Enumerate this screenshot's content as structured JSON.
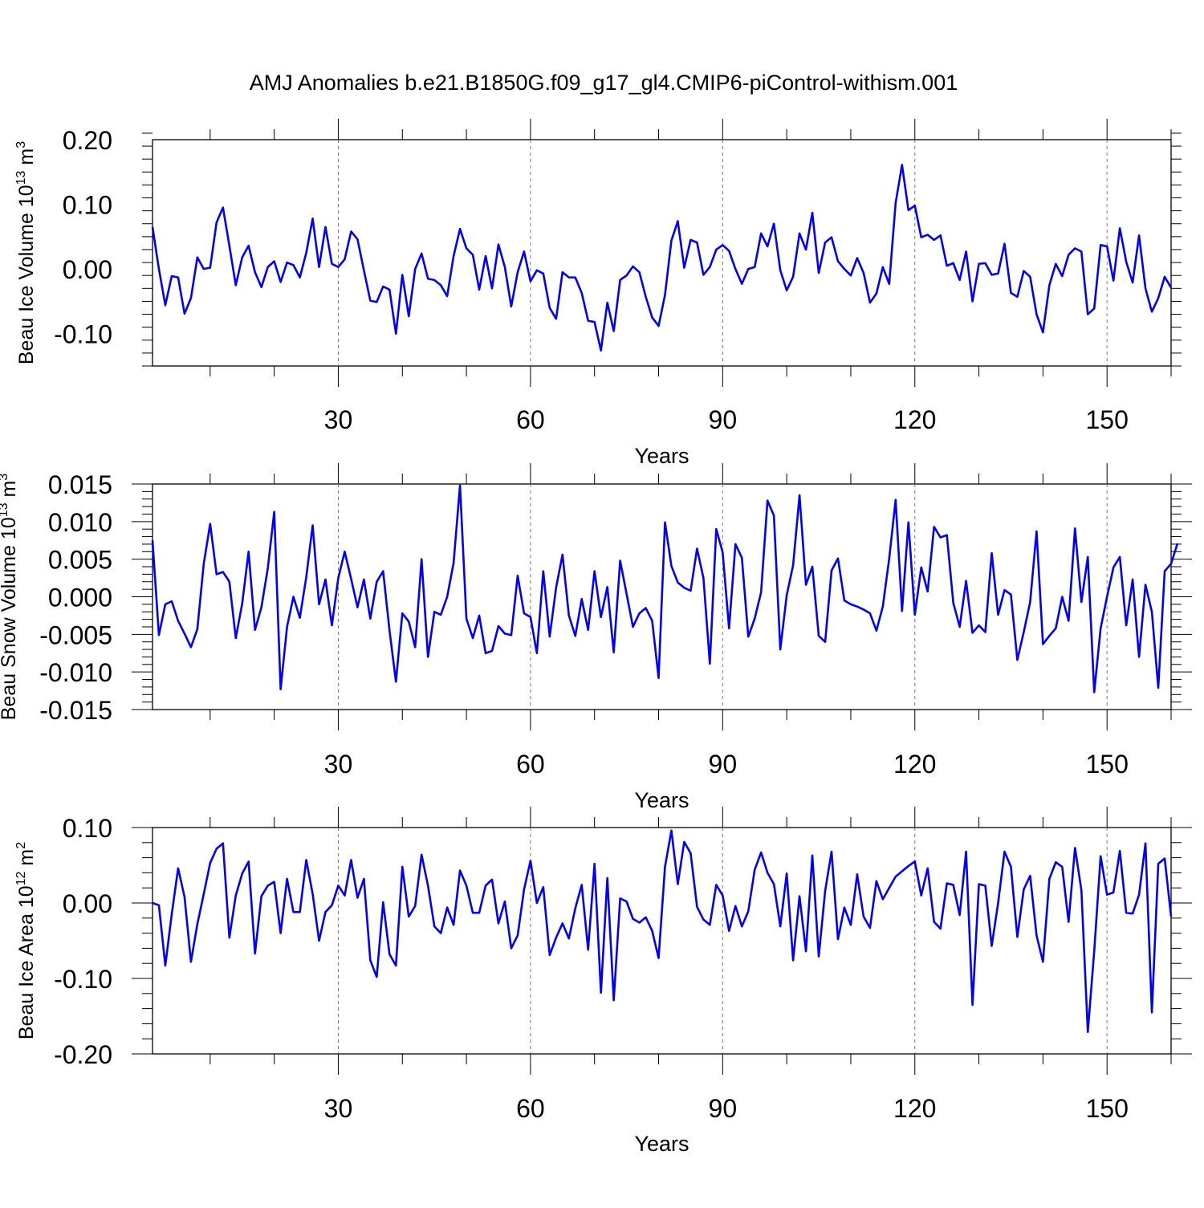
{
  "title": "AMJ Anomalies b.e21.B1850G.f09_g17_gl4.CMIP6-piControl-withism.001",
  "chart_data": [
    {
      "type": "line",
      "ylabel": "Beau Ice Volume 10",
      "ylabel_exp": "13",
      "ylabel_unit": "m",
      "ylabel_unit_exp": "3",
      "xlabel": "Years",
      "xlim": [
        1,
        160
      ],
      "ylim": [
        -0.15,
        0.2
      ],
      "yticks": [
        0.2,
        0.1,
        0.0,
        -0.1
      ],
      "ytick_labels": [
        "0.20",
        "0.10",
        "0.00",
        "-0.10"
      ],
      "xticks": [
        30,
        60,
        90,
        120,
        150
      ],
      "xtick_labels": [
        "30",
        "60",
        "90",
        "120",
        "150"
      ],
      "grid": "vertical dashed at major x ticks",
      "line_color": "#0000ff",
      "values": [
        0.065,
        0.0,
        -0.056,
        -0.011,
        -0.013,
        -0.069,
        -0.045,
        0.018,
        0.0,
        0.002,
        0.072,
        0.095,
        0.036,
        -0.025,
        0.018,
        0.036,
        -0.005,
        -0.028,
        0.003,
        0.012,
        -0.02,
        0.01,
        0.006,
        -0.013,
        0.025,
        0.078,
        0.003,
        0.065,
        0.008,
        0.003,
        0.015,
        0.058,
        0.046,
        -0.002,
        -0.049,
        -0.051,
        -0.027,
        -0.032,
        -0.1,
        -0.009,
        -0.073,
        0.0,
        0.024,
        -0.015,
        -0.017,
        -0.025,
        -0.042,
        0.02,
        0.062,
        0.032,
        0.022,
        -0.032,
        0.02,
        -0.03,
        0.038,
        0.003,
        -0.058,
        -0.005,
        0.027,
        -0.019,
        -0.002,
        -0.007,
        -0.06,
        -0.077,
        -0.005,
        -0.013,
        -0.013,
        -0.037,
        -0.08,
        -0.082,
        -0.126,
        -0.052,
        -0.096,
        -0.017,
        -0.01,
        0.004,
        -0.005,
        -0.043,
        -0.075,
        -0.088,
        -0.04,
        0.044,
        0.074,
        0.002,
        0.045,
        0.041,
        -0.009,
        0.003,
        0.03,
        0.037,
        0.028,
        0.0,
        -0.023,
        0.0,
        0.003,
        0.055,
        0.035,
        0.07,
        -0.002,
        -0.033,
        -0.012,
        0.055,
        0.03,
        0.087,
        -0.006,
        0.041,
        0.049,
        0.012,
        0.0,
        -0.01,
        0.017,
        -0.006,
        -0.052,
        -0.038,
        0.003,
        -0.023,
        0.102,
        0.161,
        0.091,
        0.098,
        0.049,
        0.053,
        0.045,
        0.052,
        0.005,
        0.009,
        -0.017,
        0.027,
        -0.05,
        0.008,
        0.009,
        -0.009,
        -0.007,
        0.039,
        -0.037,
        -0.043,
        -0.003,
        -0.012,
        -0.07,
        -0.098,
        -0.025,
        0.008,
        -0.011,
        0.022,
        0.032,
        0.027,
        -0.07,
        -0.061,
        0.037,
        0.035,
        -0.018,
        0.063,
        0.011,
        -0.021,
        0.052,
        -0.03,
        -0.066,
        -0.045,
        -0.012,
        -0.029
      ]
    },
    {
      "type": "line",
      "ylabel": "Beau Snow Volume 10",
      "ylabel_exp": "13",
      "ylabel_unit": "m",
      "ylabel_unit_exp": "3",
      "xlabel": "Years",
      "xlim": [
        1,
        160
      ],
      "ylim": [
        -0.015,
        0.015
      ],
      "yticks": [
        0.015,
        0.01,
        0.005,
        0.0,
        -0.005,
        -0.01,
        -0.015
      ],
      "ytick_labels": [
        "0.015",
        "0.010",
        "0.005",
        "0.000",
        "-0.005",
        "-0.010",
        "-0.015"
      ],
      "xticks": [
        30,
        60,
        90,
        120,
        150
      ],
      "xtick_labels": [
        "30",
        "60",
        "90",
        "120",
        "150"
      ],
      "grid": "vertical dashed at major x ticks",
      "line_color": "#0000ff",
      "values": [
        0.0075,
        -0.0051,
        -0.001,
        -0.0006,
        -0.0032,
        -0.0049,
        -0.0067,
        -0.0043,
        0.0044,
        0.0097,
        0.003,
        0.0033,
        0.002,
        -0.0055,
        -0.0009,
        0.006,
        -0.0044,
        -0.0014,
        0.0038,
        0.0113,
        -0.0123,
        -0.004,
        0.0,
        -0.0028,
        0.0026,
        0.0095,
        -0.001,
        0.0023,
        -0.0038,
        0.0025,
        0.006,
        0.0024,
        -0.0014,
        0.0023,
        -0.0029,
        0.002,
        0.0034,
        -0.0045,
        -0.0113,
        -0.0022,
        -0.0033,
        -0.0067,
        0.005,
        -0.008,
        -0.002,
        -0.0024,
        0.0,
        0.0045,
        0.0148,
        -0.0029,
        -0.0055,
        -0.0025,
        -0.0075,
        -0.0072,
        -0.0039,
        -0.0049,
        -0.0051,
        0.0028,
        -0.0022,
        -0.0027,
        -0.0075,
        0.0034,
        -0.0053,
        0.0012,
        0.0056,
        -0.0025,
        -0.0052,
        -0.0003,
        -0.0044,
        0.0034,
        -0.0027,
        0.0013,
        -0.0074,
        0.0048,
        0.0004,
        -0.004,
        -0.0022,
        -0.0015,
        -0.0032,
        -0.0108,
        0.0099,
        0.0041,
        0.0019,
        0.0012,
        0.0008,
        0.0064,
        0.0025,
        -0.0089,
        0.009,
        0.0059,
        -0.0042,
        0.007,
        0.0052,
        -0.0053,
        -0.0029,
        0.0006,
        0.0128,
        0.0108,
        -0.007,
        0.0002,
        0.0042,
        0.0135,
        0.0016,
        0.004,
        -0.0052,
        -0.006,
        0.0035,
        0.0051,
        -0.0005,
        -0.001,
        -0.0013,
        -0.0017,
        -0.0022,
        -0.0045,
        -0.0013,
        0.0051,
        0.0129,
        -0.0019,
        0.0099,
        -0.0024,
        0.0039,
        0.0007,
        0.0093,
        0.0079,
        0.0082,
        -0.0008,
        -0.004,
        0.0021,
        -0.0048,
        -0.0038,
        -0.0047,
        0.0058,
        -0.0024,
        0.0009,
        0.0003,
        -0.0084,
        -0.0047,
        -0.0007,
        0.0087,
        -0.0063,
        -0.0052,
        -0.0042,
        0.0,
        -0.0032,
        0.0091,
        -0.0007,
        0.0053,
        -0.0127,
        -0.0042,
        0.0,
        0.0039,
        0.0053,
        -0.0038,
        0.0023,
        -0.008,
        0.0016,
        -0.002,
        -0.0121,
        0.0034,
        0.0044,
        0.0071
      ]
    },
    {
      "type": "line",
      "ylabel": "Beau Ice Area 10",
      "ylabel_exp": "12",
      "ylabel_unit": "m",
      "ylabel_unit_exp": "2",
      "xlabel": "Years",
      "xlim": [
        1,
        160
      ],
      "ylim": [
        -0.2,
        0.1
      ],
      "yticks": [
        0.1,
        0.0,
        -0.1,
        -0.2
      ],
      "ytick_labels": [
        "0.10",
        "0.00",
        "-0.10",
        "-0.20"
      ],
      "xticks": [
        30,
        60,
        90,
        120,
        150
      ],
      "xtick_labels": [
        "30",
        "60",
        "90",
        "120",
        "150"
      ],
      "grid": "vertical dashed at major x ticks",
      "line_color": "#0000ff",
      "values": [
        0.0,
        -0.003,
        -0.083,
        -0.015,
        0.046,
        0.008,
        -0.078,
        -0.028,
        0.012,
        0.053,
        0.072,
        0.079,
        -0.046,
        0.01,
        0.039,
        0.055,
        -0.067,
        0.009,
        0.023,
        0.028,
        -0.04,
        0.032,
        -0.012,
        -0.012,
        0.057,
        0.012,
        -0.05,
        -0.012,
        -0.003,
        0.023,
        0.01,
        0.057,
        0.007,
        0.032,
        -0.076,
        -0.098,
        0.001,
        -0.068,
        -0.083,
        0.048,
        -0.018,
        -0.004,
        0.064,
        0.023,
        -0.031,
        -0.04,
        -0.006,
        -0.029,
        0.043,
        0.023,
        -0.013,
        -0.013,
        0.023,
        0.031,
        -0.027,
        0.002,
        -0.06,
        -0.043,
        0.018,
        0.056,
        0.0,
        0.021,
        -0.069,
        -0.046,
        -0.027,
        -0.047,
        -0.007,
        0.024,
        -0.062,
        0.052,
        -0.119,
        0.033,
        -0.129,
        0.006,
        0.002,
        -0.021,
        -0.026,
        -0.019,
        -0.037,
        -0.073,
        0.048,
        0.096,
        0.025,
        0.081,
        0.066,
        -0.005,
        -0.022,
        -0.029,
        0.024,
        0.01,
        -0.037,
        -0.004,
        -0.031,
        -0.011,
        0.044,
        0.067,
        0.04,
        0.025,
        -0.031,
        0.039,
        -0.076,
        0.009,
        -0.064,
        0.063,
        -0.071,
        0.016,
        0.068,
        -0.048,
        -0.006,
        -0.029,
        0.038,
        -0.018,
        -0.033,
        0.029,
        0.005,
        0.02,
        0.035,
        0.042,
        0.049,
        0.055,
        0.01,
        0.046,
        -0.025,
        -0.034,
        0.026,
        0.024,
        -0.016,
        0.068,
        -0.135,
        0.025,
        0.023,
        -0.057,
        0.0,
        0.068,
        0.048,
        -0.045,
        0.018,
        0.036,
        -0.043,
        -0.078,
        0.032,
        0.054,
        0.048,
        -0.025,
        0.073,
        0.017,
        -0.171,
        -0.064,
        0.062,
        0.011,
        0.014,
        0.069,
        -0.013,
        -0.014,
        0.011,
        0.079,
        -0.145,
        0.052,
        0.059,
        -0.018
      ]
    }
  ]
}
